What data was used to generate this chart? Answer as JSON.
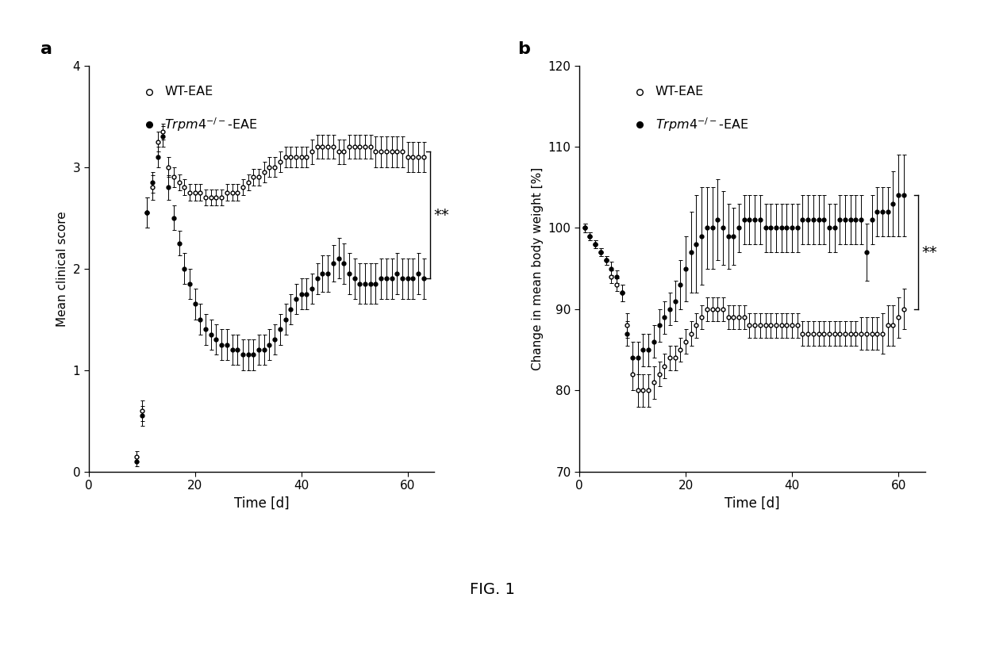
{
  "panel_a": {
    "wt_x": [
      9,
      10,
      11,
      12,
      13,
      14,
      15,
      16,
      17,
      18,
      19,
      20,
      21,
      22,
      23,
      24,
      25,
      26,
      27,
      28,
      29,
      30,
      31,
      32,
      33,
      34,
      35,
      36,
      37,
      38,
      39,
      40,
      41,
      42,
      43,
      44,
      45,
      46,
      47,
      48,
      49,
      50,
      51,
      52,
      53,
      54,
      55,
      56,
      57,
      58,
      59,
      60,
      61,
      62,
      63
    ],
    "wt_y": [
      0.15,
      0.6,
      2.55,
      2.8,
      3.25,
      3.35,
      3.0,
      2.9,
      2.85,
      2.8,
      2.75,
      2.75,
      2.75,
      2.7,
      2.7,
      2.7,
      2.7,
      2.75,
      2.75,
      2.75,
      2.8,
      2.85,
      2.9,
      2.9,
      2.95,
      3.0,
      3.0,
      3.05,
      3.1,
      3.1,
      3.1,
      3.1,
      3.1,
      3.15,
      3.2,
      3.2,
      3.2,
      3.2,
      3.15,
      3.15,
      3.2,
      3.2,
      3.2,
      3.2,
      3.2,
      3.15,
      3.15,
      3.15,
      3.15,
      3.15,
      3.15,
      3.1,
      3.1,
      3.1,
      3.1
    ],
    "wt_err": [
      0.05,
      0.1,
      0.15,
      0.12,
      0.1,
      0.08,
      0.1,
      0.1,
      0.08,
      0.08,
      0.08,
      0.08,
      0.08,
      0.08,
      0.08,
      0.08,
      0.08,
      0.08,
      0.08,
      0.08,
      0.08,
      0.08,
      0.08,
      0.08,
      0.1,
      0.1,
      0.1,
      0.1,
      0.1,
      0.1,
      0.1,
      0.1,
      0.1,
      0.12,
      0.12,
      0.12,
      0.12,
      0.12,
      0.12,
      0.12,
      0.12,
      0.12,
      0.12,
      0.12,
      0.12,
      0.15,
      0.15,
      0.15,
      0.15,
      0.15,
      0.15,
      0.15,
      0.15,
      0.15,
      0.15
    ],
    "ko_x": [
      9,
      10,
      11,
      12,
      13,
      14,
      15,
      16,
      17,
      18,
      19,
      20,
      21,
      22,
      23,
      24,
      25,
      26,
      27,
      28,
      29,
      30,
      31,
      32,
      33,
      34,
      35,
      36,
      37,
      38,
      39,
      40,
      41,
      42,
      43,
      44,
      45,
      46,
      47,
      48,
      49,
      50,
      51,
      52,
      53,
      54,
      55,
      56,
      57,
      58,
      59,
      60,
      61,
      62,
      63
    ],
    "ko_y": [
      0.1,
      0.55,
      2.55,
      2.85,
      3.1,
      3.3,
      2.8,
      2.5,
      2.25,
      2.0,
      1.85,
      1.65,
      1.5,
      1.4,
      1.35,
      1.3,
      1.25,
      1.25,
      1.2,
      1.2,
      1.15,
      1.15,
      1.15,
      1.2,
      1.2,
      1.25,
      1.3,
      1.4,
      1.5,
      1.6,
      1.7,
      1.75,
      1.75,
      1.8,
      1.9,
      1.95,
      1.95,
      2.05,
      2.1,
      2.05,
      1.95,
      1.9,
      1.85,
      1.85,
      1.85,
      1.85,
      1.9,
      1.9,
      1.9,
      1.95,
      1.9,
      1.9,
      1.9,
      1.95,
      1.9
    ],
    "ko_err": [
      0.05,
      0.1,
      0.15,
      0.1,
      0.1,
      0.1,
      0.12,
      0.12,
      0.12,
      0.15,
      0.15,
      0.15,
      0.15,
      0.15,
      0.15,
      0.15,
      0.15,
      0.15,
      0.15,
      0.15,
      0.15,
      0.15,
      0.15,
      0.15,
      0.15,
      0.15,
      0.15,
      0.15,
      0.15,
      0.15,
      0.15,
      0.15,
      0.15,
      0.15,
      0.15,
      0.18,
      0.18,
      0.18,
      0.2,
      0.2,
      0.2,
      0.2,
      0.2,
      0.2,
      0.2,
      0.2,
      0.2,
      0.2,
      0.2,
      0.2,
      0.2,
      0.2,
      0.2,
      0.2,
      0.2
    ],
    "xlabel": "Time [d]",
    "ylabel": "Mean clinical score",
    "xlim": [
      0,
      65
    ],
    "ylim": [
      0,
      4
    ],
    "yticks": [
      0,
      1,
      2,
      3,
      4
    ],
    "xticks": [
      0,
      20,
      40,
      60
    ],
    "label": "a",
    "bracket_x": 63.5,
    "bracket_y_top": 3.15,
    "bracket_y_bot": 1.9
  },
  "panel_b": {
    "wt_x": [
      1,
      2,
      3,
      4,
      5,
      6,
      7,
      8,
      9,
      10,
      11,
      12,
      13,
      14,
      15,
      16,
      17,
      18,
      19,
      20,
      21,
      22,
      23,
      24,
      25,
      26,
      27,
      28,
      29,
      30,
      31,
      32,
      33,
      34,
      35,
      36,
      37,
      38,
      39,
      40,
      41,
      42,
      43,
      44,
      45,
      46,
      47,
      48,
      49,
      50,
      51,
      52,
      53,
      54,
      55,
      56,
      57,
      58,
      59,
      60,
      61
    ],
    "wt_y": [
      100,
      99,
      98,
      97,
      96,
      94,
      93,
      92,
      88,
      82,
      80,
      80,
      80,
      81,
      82,
      83,
      84,
      84,
      85,
      86,
      87,
      88,
      89,
      90,
      90,
      90,
      90,
      89,
      89,
      89,
      89,
      88,
      88,
      88,
      88,
      88,
      88,
      88,
      88,
      88,
      88,
      87,
      87,
      87,
      87,
      87,
      87,
      87,
      87,
      87,
      87,
      87,
      87,
      87,
      87,
      87,
      87,
      88,
      88,
      89,
      90
    ],
    "wt_err": [
      0.5,
      0.5,
      0.5,
      0.5,
      0.5,
      0.8,
      0.8,
      1.0,
      1.5,
      2.0,
      2.0,
      2.0,
      2.0,
      2.0,
      1.5,
      1.5,
      1.5,
      1.5,
      1.5,
      1.5,
      1.5,
      1.5,
      1.5,
      1.5,
      1.5,
      1.5,
      1.5,
      1.5,
      1.5,
      1.5,
      1.5,
      1.5,
      1.5,
      1.5,
      1.5,
      1.5,
      1.5,
      1.5,
      1.5,
      1.5,
      1.5,
      1.5,
      1.5,
      1.5,
      1.5,
      1.5,
      1.5,
      1.5,
      1.5,
      1.5,
      1.5,
      1.5,
      2.0,
      2.0,
      2.0,
      2.0,
      2.5,
      2.5,
      2.5,
      2.5,
      2.5
    ],
    "ko_x": [
      1,
      2,
      3,
      4,
      5,
      6,
      7,
      8,
      9,
      10,
      11,
      12,
      13,
      14,
      15,
      16,
      17,
      18,
      19,
      20,
      21,
      22,
      23,
      24,
      25,
      26,
      27,
      28,
      29,
      30,
      31,
      32,
      33,
      34,
      35,
      36,
      37,
      38,
      39,
      40,
      41,
      42,
      43,
      44,
      45,
      46,
      47,
      48,
      49,
      50,
      51,
      52,
      53,
      54,
      55,
      56,
      57,
      58,
      59,
      60,
      61
    ],
    "ko_y": [
      100,
      99,
      98,
      97,
      96,
      95,
      94,
      92,
      87,
      84,
      84,
      85,
      85,
      86,
      88,
      89,
      90,
      91,
      93,
      95,
      97,
      98,
      99,
      100,
      100,
      101,
      100,
      99,
      99,
      100,
      101,
      101,
      101,
      101,
      100,
      100,
      100,
      100,
      100,
      100,
      100,
      101,
      101,
      101,
      101,
      101,
      100,
      100,
      101,
      101,
      101,
      101,
      101,
      97,
      101,
      102,
      102,
      102,
      103,
      104,
      104
    ],
    "ko_err": [
      0.5,
      0.5,
      0.5,
      0.5,
      0.5,
      0.8,
      0.8,
      1.0,
      1.5,
      2.0,
      2.0,
      2.0,
      2.0,
      2.0,
      2.0,
      2.0,
      2.0,
      2.5,
      3.0,
      4.0,
      5.0,
      6.0,
      6.0,
      5.0,
      5.0,
      5.0,
      4.5,
      4.0,
      3.5,
      3.0,
      3.0,
      3.0,
      3.0,
      3.0,
      3.0,
      3.0,
      3.0,
      3.0,
      3.0,
      3.0,
      3.0,
      3.0,
      3.0,
      3.0,
      3.0,
      3.0,
      3.0,
      3.0,
      3.0,
      3.0,
      3.0,
      3.0,
      3.0,
      3.5,
      3.0,
      3.0,
      3.0,
      3.0,
      4.0,
      5.0,
      5.0
    ],
    "xlabel": "Time [d]",
    "ylabel": "Change in mean body weight [%]",
    "xlim": [
      0,
      65
    ],
    "ylim": [
      70,
      120
    ],
    "yticks": [
      70,
      80,
      90,
      100,
      110,
      120
    ],
    "xticks": [
      0,
      20,
      40,
      60
    ],
    "label": "b",
    "bracket_x": 63.0,
    "bracket_y_top": 104.0,
    "bracket_y_bot": 90.0
  },
  "significance": "**",
  "figure_label": "FIG. 1",
  "bg_color": "#ffffff"
}
